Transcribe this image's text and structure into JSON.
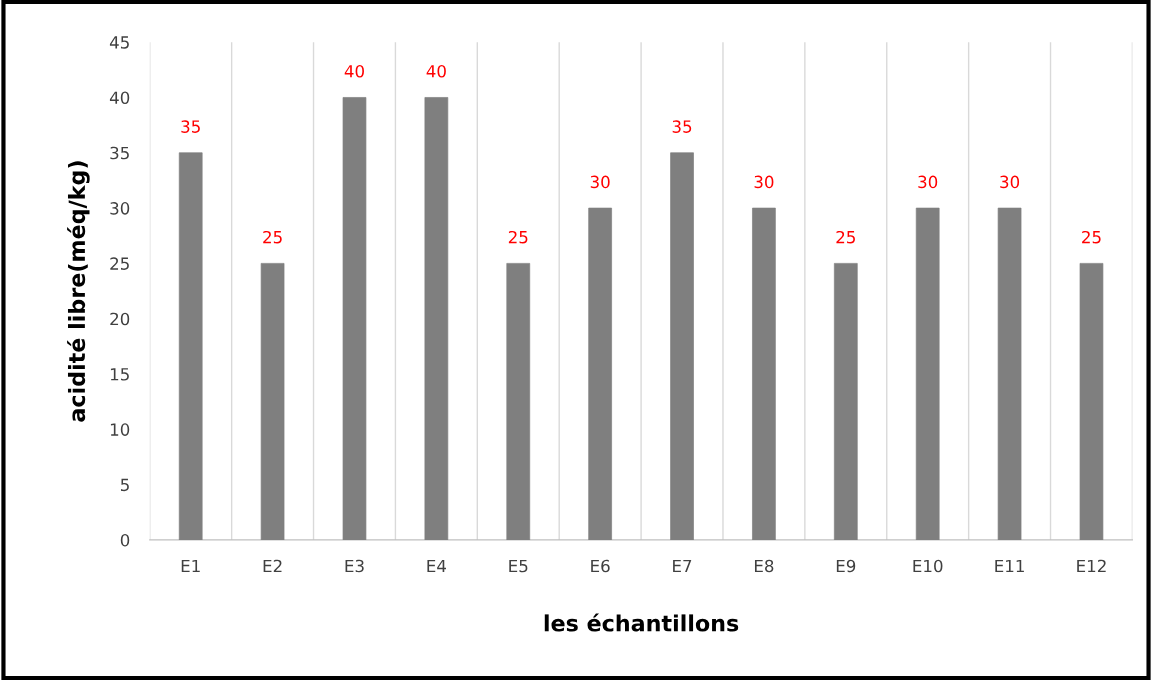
{
  "chart_data": {
    "type": "bar",
    "xlabel": "les échantillons",
    "ylabel": "acidité libre(méq/kg)",
    "categories": [
      "E1",
      "E2",
      "E3",
      "E4",
      "E5",
      "E6",
      "E7",
      "E8",
      "E9",
      "E10",
      "E11",
      "E12"
    ],
    "values": [
      35,
      25,
      40,
      40,
      25,
      30,
      35,
      30,
      25,
      30,
      30,
      25
    ],
    "color": "#7f7f7f",
    "ylim": [
      0,
      45
    ],
    "yticks": [
      0,
      5,
      10,
      15,
      20,
      25,
      30,
      35,
      40,
      45
    ],
    "grid": "x",
    "data_labels": true
  }
}
